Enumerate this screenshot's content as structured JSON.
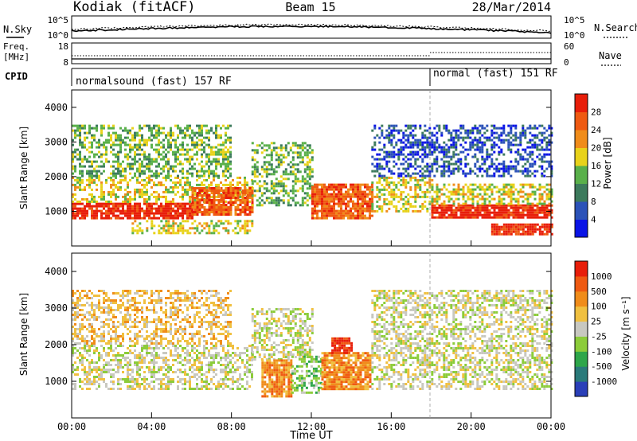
{
  "header": {
    "station": "Kodiak (fitACF)",
    "beam": "Beam 15",
    "date": "28/Mar/2014"
  },
  "noise_panel": {
    "left_label": "N.Sky",
    "right_label": "N.Search",
    "left_ticks": [
      "10^5",
      "10^0"
    ],
    "right_ticks": [
      "10^5",
      "10^0"
    ]
  },
  "freq_panel": {
    "left_label_1": "Freq.",
    "left_label_2": "[MHz]",
    "right_label": "Nave",
    "left_ticks": [
      "18",
      "8"
    ],
    "right_ticks": [
      "60",
      "0"
    ]
  },
  "cpid_panel": {
    "label": "CPID",
    "segments": [
      {
        "text": "normalsound (fast) 157 RF",
        "start_hour": 0
      },
      {
        "text": "normal (fast) 151 RF",
        "start_hour": 18
      }
    ]
  },
  "colors": {
    "power_scale": [
      "#0a14e6",
      "#2b52b8",
      "#3c7a5c",
      "#59b04a",
      "#e8d21a",
      "#f08c1a",
      "#ef5a12",
      "#e81e0a"
    ],
    "velocity_scale": [
      "#2a3fb8",
      "#2a7a7a",
      "#2ea64a",
      "#8ccc3a",
      "#c8c8c0",
      "#f0c040",
      "#f08c1a",
      "#ef5a12",
      "#e81e0a"
    ]
  },
  "chart_data": [
    {
      "type": "heatmap",
      "title": "",
      "xlabel": "",
      "ylabel": "Slant Range [km]",
      "colorbar_label": "Power [dB]",
      "colorbar_ticks": [
        "28",
        "24",
        "20",
        "16",
        "12",
        "8",
        "4"
      ],
      "xlim": [
        0,
        24
      ],
      "ylim": [
        0,
        4500
      ],
      "yticks": [
        "4000",
        "3000",
        "2000",
        "1000"
      ],
      "bands": [
        {
          "start": 0,
          "end": 6,
          "lo": 800,
          "hi": 1250,
          "level": 7
        },
        {
          "start": 0,
          "end": 9,
          "lo": 1250,
          "hi": 2000,
          "level": 4
        },
        {
          "start": 0,
          "end": 8,
          "lo": 2000,
          "hi": 3500,
          "level": 3
        },
        {
          "start": 6,
          "end": 9,
          "lo": 900,
          "hi": 1700,
          "level": 6
        },
        {
          "start": 3,
          "end": 9,
          "lo": 400,
          "hi": 750,
          "level": 4
        },
        {
          "start": 9,
          "end": 12,
          "lo": 1200,
          "hi": 3000,
          "level": 3
        },
        {
          "start": 12,
          "end": 15,
          "lo": 800,
          "hi": 1800,
          "level": 6
        },
        {
          "start": 15,
          "end": 18,
          "lo": 1000,
          "hi": 2000,
          "level": 4
        },
        {
          "start": 15,
          "end": 24,
          "lo": 2000,
          "hi": 3500,
          "level": 1
        },
        {
          "start": 18,
          "end": 24,
          "lo": 800,
          "hi": 1200,
          "level": 7
        },
        {
          "start": 18,
          "end": 24,
          "lo": 1200,
          "hi": 1800,
          "level": 4
        },
        {
          "start": 21,
          "end": 24,
          "lo": 350,
          "hi": 650,
          "level": 7
        }
      ]
    },
    {
      "type": "heatmap",
      "title": "",
      "xlabel": "Time UT",
      "ylabel": "Slant Range [km]",
      "colorbar_label": "Velocity [m s⁻¹]",
      "colorbar_ticks": [
        "1000",
        "500",
        "100",
        "25",
        "-25",
        "-100",
        "-500",
        "-1000"
      ],
      "xlim": [
        0,
        24
      ],
      "ylim": [
        0,
        4500
      ],
      "yticks": [
        "4000",
        "3000",
        "2000",
        "1000"
      ],
      "xticks": [
        "00:00",
        "04:00",
        "08:00",
        "12:00",
        "16:00",
        "20:00",
        "00:00"
      ],
      "bands": [
        {
          "start": 0,
          "end": 9,
          "lo": 800,
          "hi": 2000,
          "level": 4
        },
        {
          "start": 0,
          "end": 8,
          "lo": 2000,
          "hi": 3500,
          "level": 5
        },
        {
          "start": 9,
          "end": 12,
          "lo": 1600,
          "hi": 3000,
          "level": 4
        },
        {
          "start": 9.5,
          "end": 11,
          "lo": 600,
          "hi": 1600,
          "level": 6
        },
        {
          "start": 11,
          "end": 12.5,
          "lo": 700,
          "hi": 1700,
          "level": 3
        },
        {
          "start": 12.5,
          "end": 15,
          "lo": 800,
          "hi": 1800,
          "level": 6
        },
        {
          "start": 13,
          "end": 14,
          "lo": 1800,
          "hi": 2200,
          "level": 8
        },
        {
          "start": 15,
          "end": 24,
          "lo": 800,
          "hi": 2000,
          "level": 4
        },
        {
          "start": 15,
          "end": 24,
          "lo": 2000,
          "hi": 3500,
          "level": 4
        }
      ]
    }
  ]
}
